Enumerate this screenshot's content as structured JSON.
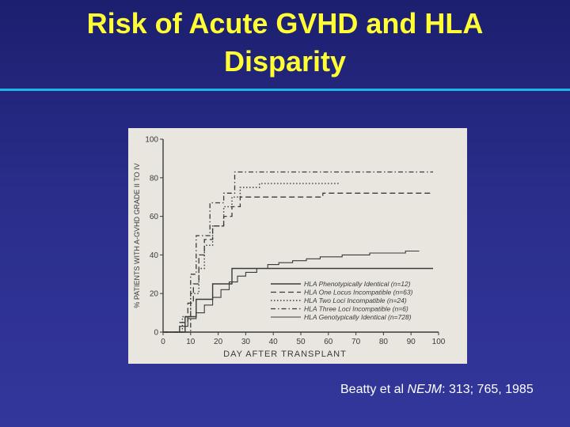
{
  "slide": {
    "title_line1": "Risk of Acute GVHD and HLA",
    "title_line2": "Disparity",
    "citation_prefix": "Beatty et al ",
    "citation_journal": "NEJM",
    "citation_suffix": ": 313; 765, 1985",
    "colors": {
      "title": "#ffff33",
      "rule": "#1ab6e6",
      "background": "#2a2d8a"
    }
  },
  "chart_data": {
    "type": "line",
    "step": true,
    "xlabel": "DAY AFTER TRANSPLANT",
    "ylabel": "% PATIENTS WITH A-GVHD GRADE II TO IV",
    "xlim": [
      0,
      100
    ],
    "ylim": [
      0,
      100
    ],
    "x_ticks": [
      "0",
      "10",
      "20",
      "30",
      "40",
      "50",
      "60",
      "70",
      "80",
      "90",
      "100"
    ],
    "y_ticks": [
      "0",
      "20",
      "40",
      "60",
      "80",
      "100"
    ],
    "legend_position": "bottom-right",
    "series": [
      {
        "name": "HLA Phenotypically Identical (n=12)",
        "style": "solid",
        "points": [
          [
            0,
            0
          ],
          [
            8,
            0
          ],
          [
            8,
            8
          ],
          [
            12,
            8
          ],
          [
            12,
            17
          ],
          [
            18,
            17
          ],
          [
            18,
            25
          ],
          [
            25,
            25
          ],
          [
            25,
            33
          ],
          [
            90,
            33
          ],
          [
            98,
            33
          ]
        ]
      },
      {
        "name": "HLA One Locus Incompatible (n=63)",
        "style": "dashed",
        "points": [
          [
            0,
            0
          ],
          [
            6,
            0
          ],
          [
            6,
            5
          ],
          [
            9,
            5
          ],
          [
            9,
            15
          ],
          [
            11,
            15
          ],
          [
            11,
            25
          ],
          [
            13,
            25
          ],
          [
            13,
            40
          ],
          [
            15,
            40
          ],
          [
            15,
            48
          ],
          [
            18,
            48
          ],
          [
            18,
            55
          ],
          [
            22,
            55
          ],
          [
            22,
            60
          ],
          [
            25,
            60
          ],
          [
            25,
            65
          ],
          [
            28,
            65
          ],
          [
            28,
            70
          ],
          [
            58,
            70
          ],
          [
            58,
            72
          ],
          [
            98,
            72
          ]
        ]
      },
      {
        "name": "HLA Two Loci Incompatible (n=24)",
        "style": "dotted",
        "points": [
          [
            0,
            0
          ],
          [
            7,
            0
          ],
          [
            7,
            8
          ],
          [
            10,
            8
          ],
          [
            10,
            20
          ],
          [
            13,
            20
          ],
          [
            13,
            33
          ],
          [
            15,
            33
          ],
          [
            15,
            45
          ],
          [
            18,
            45
          ],
          [
            18,
            55
          ],
          [
            22,
            55
          ],
          [
            22,
            65
          ],
          [
            25,
            65
          ],
          [
            25,
            70
          ],
          [
            28,
            70
          ],
          [
            28,
            75
          ],
          [
            35,
            75
          ],
          [
            35,
            77
          ],
          [
            64,
            77
          ]
        ]
      },
      {
        "name": "HLA Three Loci Incompatible (n=6)",
        "style": "dashdot",
        "points": [
          [
            0,
            0
          ],
          [
            10,
            0
          ],
          [
            10,
            30
          ],
          [
            12,
            30
          ],
          [
            12,
            50
          ],
          [
            17,
            50
          ],
          [
            17,
            67
          ],
          [
            22,
            67
          ],
          [
            22,
            72
          ],
          [
            26,
            72
          ],
          [
            26,
            83
          ],
          [
            98,
            83
          ]
        ]
      },
      {
        "name": "HLA Genotypically Identical (n=728)",
        "style": "solid-thin",
        "points": [
          [
            0,
            0
          ],
          [
            6,
            0
          ],
          [
            6,
            3
          ],
          [
            9,
            3
          ],
          [
            9,
            7
          ],
          [
            12,
            7
          ],
          [
            12,
            10
          ],
          [
            15,
            10
          ],
          [
            15,
            14
          ],
          [
            18,
            14
          ],
          [
            18,
            18
          ],
          [
            21,
            18
          ],
          [
            21,
            22
          ],
          [
            24,
            22
          ],
          [
            24,
            26
          ],
          [
            27,
            26
          ],
          [
            27,
            29
          ],
          [
            30,
            29
          ],
          [
            30,
            31
          ],
          [
            34,
            31
          ],
          [
            34,
            33
          ],
          [
            38,
            33
          ],
          [
            38,
            35
          ],
          [
            42,
            35
          ],
          [
            42,
            36
          ],
          [
            47,
            36
          ],
          [
            47,
            37
          ],
          [
            52,
            37
          ],
          [
            52,
            38
          ],
          [
            57,
            38
          ],
          [
            57,
            39
          ],
          [
            65,
            39
          ],
          [
            65,
            40
          ],
          [
            75,
            40
          ],
          [
            75,
            41
          ],
          [
            88,
            41
          ],
          [
            88,
            42
          ],
          [
            93,
            42
          ]
        ]
      }
    ]
  }
}
